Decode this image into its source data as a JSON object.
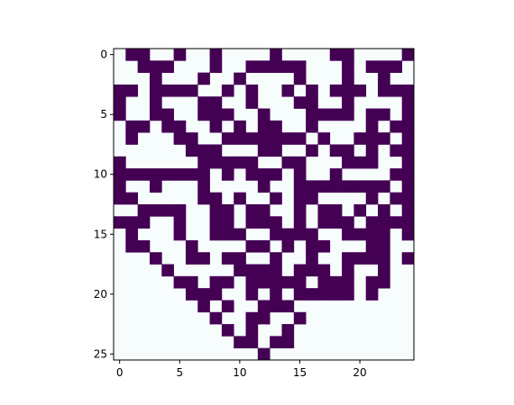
{
  "chart_data": {
    "type": "heatmap",
    "title": "",
    "xlabel": "",
    "ylabel": "",
    "xlim": [
      -0.5,
      24.5
    ],
    "ylim": [
      25.5,
      -0.5
    ],
    "xticks": [
      0,
      5,
      10,
      15,
      20
    ],
    "yticks": [
      0,
      5,
      10,
      15,
      20,
      25
    ],
    "colors": {
      "on": "#440154",
      "off": "#f7fcfd"
    },
    "legend": "none",
    "grid": false,
    "rows": [
      "0110010010000100001100001",
      "0011100010011111000101110",
      "0001000100100001000100100",
      "1101111001010010101110111",
      "1001000110010001100100001",
      "1001100111001000111101101",
      "0110110010101100100001011",
      "0100011001111111010011101",
      "0000001110001100101101011",
      "1000000111110011000111001",
      "1111111101011101001000011",
      "1001000100001001111111101",
      "1100000110100101100001011",
      "0011110011011001011010101",
      "1110010011011101011101111",
      "0100010011100111100111101",
      "0110001000011010110001100",
      "0001001101100100100111101",
      "0000100000111101110100100",
      "0000011011011111011101100",
      "0000001110010101111101000",
      "0000000101001110000000000",
      "0000000010011001000000000",
      "0000000001010010000000000",
      "0000000000110110000000000",
      "0000000000001000000000000"
    ]
  }
}
